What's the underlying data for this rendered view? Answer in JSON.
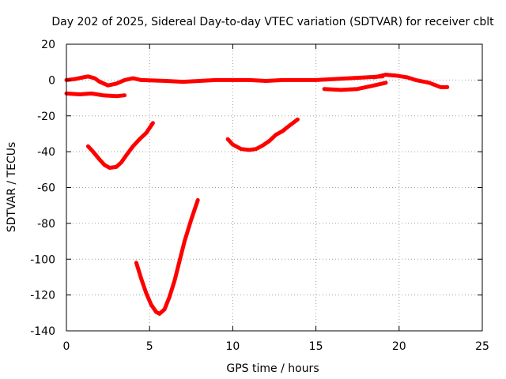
{
  "chart_data": {
    "type": "line",
    "title": "Day 202 of 2025, Sidereal Day-to-day VTEC variation (SDTVAR) for receiver cblt",
    "xlabel": "GPS time / hours",
    "ylabel": "SDTVAR / TECUs",
    "xlim": [
      0,
      25
    ],
    "ylim": [
      -140,
      20
    ],
    "xticks": [
      0,
      5,
      10,
      15,
      20,
      25
    ],
    "yticks": [
      20,
      0,
      -20,
      -40,
      -60,
      -80,
      -100,
      -120,
      -140
    ],
    "grid": true,
    "series_color": "#ff0000",
    "series": [
      {
        "x": [
          0.0,
          0.5,
          1.0,
          1.3,
          1.7,
          2.0,
          2.5,
          3.0,
          3.5,
          4.0,
          4.5
        ],
        "y": [
          0,
          0.5,
          1.5,
          2,
          1,
          -1,
          -3,
          -2,
          0,
          1,
          0
        ]
      },
      {
        "x": [
          0.0,
          0.8,
          1.5,
          2.2,
          3.0,
          3.5
        ],
        "y": [
          -7.5,
          -8,
          -7.5,
          -8.5,
          -9,
          -8.5
        ]
      },
      {
        "x": [
          4.5,
          6.0,
          7.0,
          8.0,
          9.0,
          10.0,
          11.0,
          12.0,
          13.0,
          14.0,
          15.0,
          16.0,
          17.0,
          18.0,
          19.0
        ],
        "y": [
          0,
          -0.5,
          -1,
          -0.5,
          0,
          0,
          0,
          -0.5,
          0,
          0,
          0,
          0.5,
          1,
          1.5,
          2
        ]
      },
      {
        "x": [
          15.5,
          16.5,
          17.5,
          18.5,
          19.2
        ],
        "y": [
          -5,
          -5.5,
          -5,
          -3,
          -1.5
        ]
      },
      {
        "x": [
          18.5,
          19.2,
          19.8,
          20.5,
          21.0,
          21.8,
          22.5,
          22.9
        ],
        "y": [
          1.5,
          3,
          2.5,
          1.5,
          0,
          -1.5,
          -4,
          -4
        ]
      },
      {
        "x": [
          1.3,
          1.6,
          2.0,
          2.3,
          2.6,
          3.0,
          3.3,
          3.6,
          4.0,
          4.4,
          4.8,
          5.2
        ],
        "y": [
          -37,
          -40,
          -44.5,
          -47.5,
          -49,
          -48.5,
          -46,
          -42,
          -37,
          -33,
          -29.5,
          -24
        ]
      },
      {
        "x": [
          9.7,
          10.0,
          10.5,
          11.0,
          11.4,
          11.8,
          12.2,
          12.6,
          13.0,
          13.4,
          13.9
        ],
        "y": [
          -33,
          -36,
          -38.5,
          -39,
          -38.5,
          -36.5,
          -34,
          -30.5,
          -28.5,
          -25.5,
          -22
        ]
      },
      {
        "x": [
          4.2,
          4.5,
          4.8,
          5.1,
          5.4,
          5.6,
          5.9,
          6.2,
          6.5,
          6.8,
          7.1,
          7.5,
          7.9
        ],
        "y": [
          -102,
          -111,
          -119,
          -125.5,
          -129.5,
          -130.5,
          -128,
          -121,
          -112,
          -101,
          -90,
          -78,
          -67
        ]
      }
    ]
  }
}
